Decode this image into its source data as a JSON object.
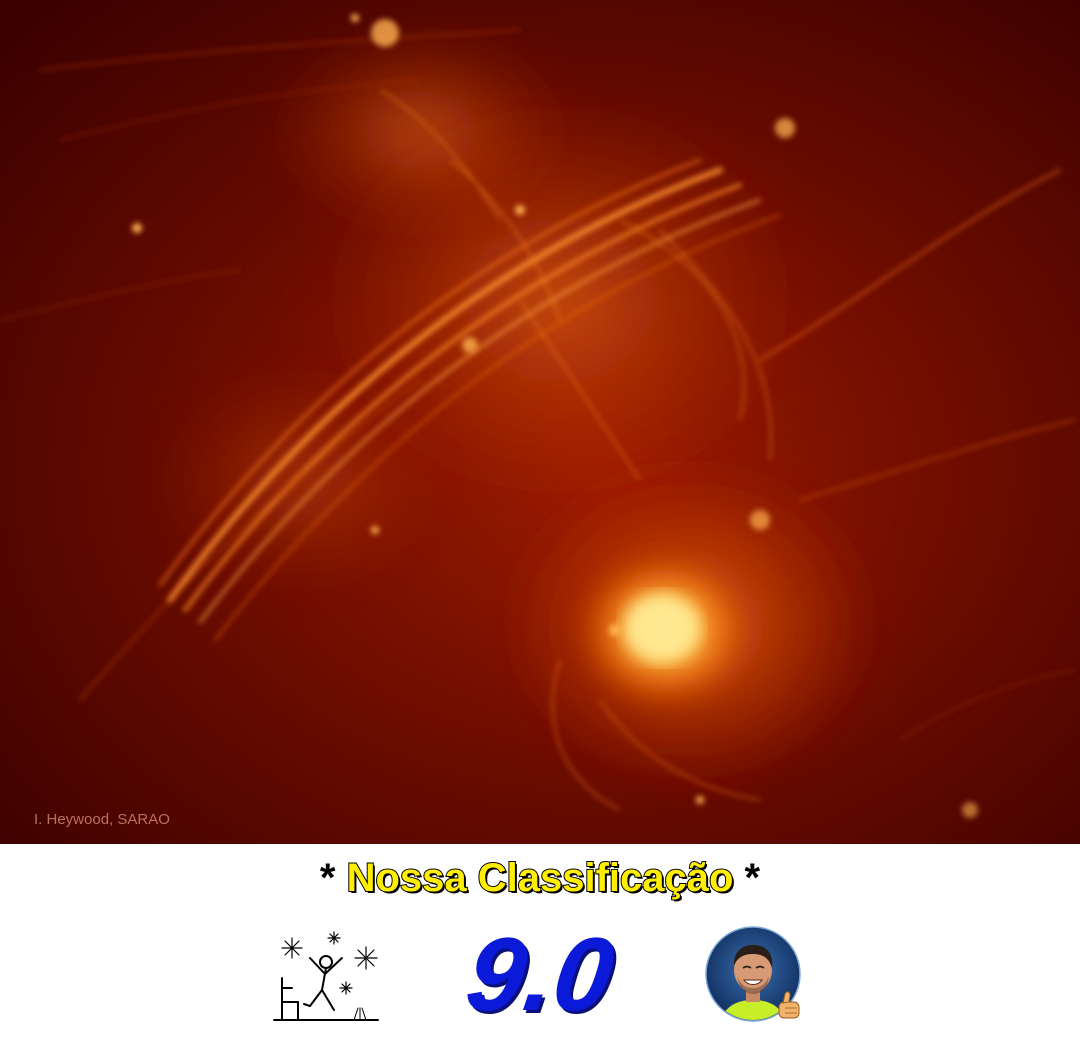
{
  "image": {
    "credit": "I. Heywood, SARAO",
    "palette": {
      "deep": "#3d0000",
      "mid": "#b32200",
      "glow": "#ff8a1a",
      "core": "#fff1a0"
    }
  },
  "rating": {
    "title_prefix": "* ",
    "title": "Nossa Classificação",
    "title_suffix": " *",
    "score": "9.0",
    "title_color": "#ffee00",
    "score_color": "#0a1ad8"
  },
  "icons": {
    "left": "celebration-stickfigure-icon",
    "right": "presenter-avatar-thumbs-up-icon"
  }
}
